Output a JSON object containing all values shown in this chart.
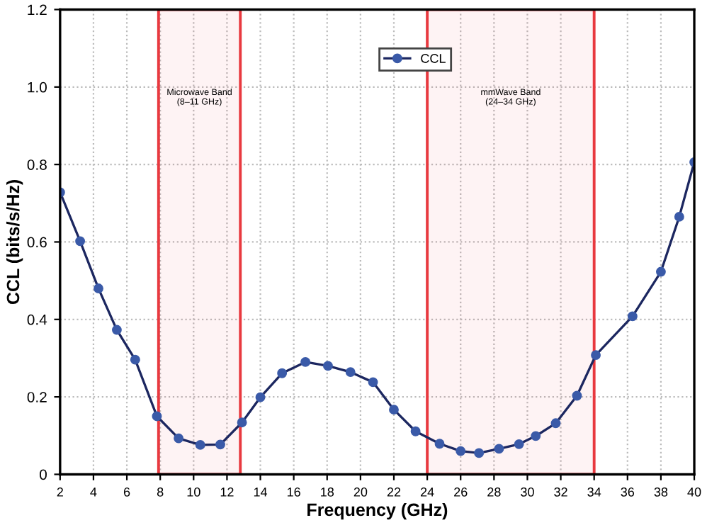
{
  "chart_data": {
    "type": "line",
    "xlabel": "Frequency (GHz)",
    "ylabel": "CCL (bits/s/Hz)",
    "x": [
      2,
      3.2,
      4.3,
      5.4,
      6.5,
      7.8,
      9.1,
      10.4,
      11.6,
      12.9,
      14.0,
      15.3,
      16.7,
      18.05,
      19.4,
      20.75,
      22.0,
      23.3,
      24.74,
      26.0,
      27.1,
      28.3,
      29.5,
      30.5,
      31.7,
      32.97,
      34.1,
      36.3,
      38.0,
      39.1,
      40
    ],
    "series": [
      {
        "name": "CCL",
        "color": "#3a5aa8",
        "values": [
          0.728,
          0.602,
          0.48,
          0.373,
          0.296,
          0.15,
          0.093,
          0.076,
          0.077,
          0.134,
          0.199,
          0.261,
          0.29,
          0.28,
          0.264,
          0.238,
          0.167,
          0.111,
          0.079,
          0.06,
          0.055,
          0.066,
          0.078,
          0.099,
          0.132,
          0.203,
          0.308,
          0.408,
          0.523,
          0.665,
          0.806
        ]
      }
    ],
    "xlim": [
      2,
      40
    ],
    "xticks": [
      2,
      4,
      6,
      8,
      10,
      12,
      14,
      16,
      18,
      20,
      22,
      24,
      26,
      28,
      30,
      32,
      34,
      36,
      38,
      40
    ],
    "ylim": [
      0,
      1.2
    ],
    "yticks": [
      0,
      0.2,
      0.4,
      0.6,
      0.8,
      {
        "value": 1,
        "label": "1.0"
      },
      1.2
    ],
    "bands": [
      {
        "axis": "x",
        "from": 7.9,
        "to": 12.8,
        "label": "Microwave Band\n(8–11 GHz)",
        "color": "#e8393f"
      },
      {
        "axis": "x",
        "from": 24,
        "to": 34,
        "label": "mmWave Band\n(24–34 GHz)",
        "color": "#e8393f"
      }
    ],
    "grid": true,
    "legend": "top center",
    "marker": "circle",
    "line_style": "solid"
  }
}
